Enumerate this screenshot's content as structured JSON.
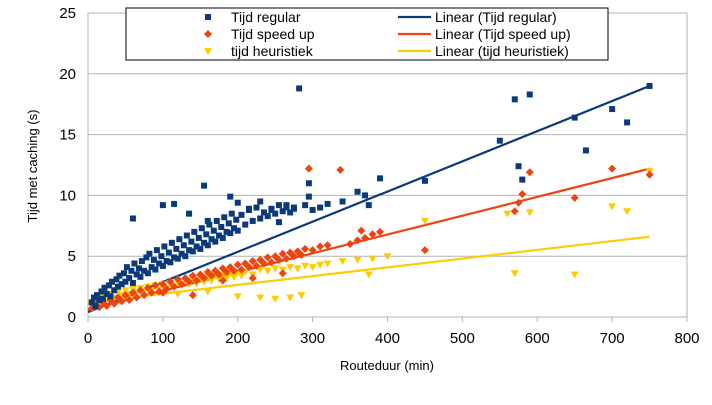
{
  "chart_data": {
    "type": "scatter",
    "title": "",
    "xlabel": "Routeduur (min)",
    "ylabel": "Tijd met caching (s)",
    "xlim": [
      0,
      800
    ],
    "ylim": [
      0,
      25
    ],
    "x_ticks": [
      0,
      100,
      200,
      300,
      400,
      500,
      600,
      700,
      800
    ],
    "y_ticks": [
      0,
      5,
      10,
      15,
      20,
      25
    ],
    "grid": "horizontal",
    "legend_position": "top",
    "series": [
      {
        "name": "Tijd regular",
        "marker": "square",
        "color": "#0b3a7a",
        "points": [
          [
            5,
            1.2
          ],
          [
            8,
            1.6
          ],
          [
            10,
            0.9
          ],
          [
            12,
            1.8
          ],
          [
            15,
            1.4
          ],
          [
            18,
            2.1
          ],
          [
            20,
            1.5
          ],
          [
            22,
            2.4
          ],
          [
            25,
            1.9
          ],
          [
            28,
            2.6
          ],
          [
            30,
            1.7
          ],
          [
            32,
            2.9
          ],
          [
            35,
            2.2
          ],
          [
            38,
            3.1
          ],
          [
            40,
            2.5
          ],
          [
            42,
            3.4
          ],
          [
            45,
            2.7
          ],
          [
            48,
            3.6
          ],
          [
            50,
            2.9
          ],
          [
            52,
            4.1
          ],
          [
            55,
            3.2
          ],
          [
            58,
            3.8
          ],
          [
            60,
            2.8
          ],
          [
            62,
            4.4
          ],
          [
            65,
            3.5
          ],
          [
            68,
            4.0
          ],
          [
            70,
            3.3
          ],
          [
            72,
            4.6
          ],
          [
            75,
            3.8
          ],
          [
            78,
            4.9
          ],
          [
            80,
            3.6
          ],
          [
            82,
            5.2
          ],
          [
            85,
            4.1
          ],
          [
            88,
            4.7
          ],
          [
            90,
            3.9
          ],
          [
            92,
            5.5
          ],
          [
            95,
            4.4
          ],
          [
            98,
            5.0
          ],
          [
            100,
            4.2
          ],
          [
            102,
            5.8
          ],
          [
            105,
            4.6
          ],
          [
            108,
            5.3
          ],
          [
            110,
            4.5
          ],
          [
            112,
            6.1
          ],
          [
            115,
            4.9
          ],
          [
            118,
            5.6
          ],
          [
            120,
            4.8
          ],
          [
            122,
            6.4
          ],
          [
            125,
            5.2
          ],
          [
            128,
            5.9
          ],
          [
            130,
            5.0
          ],
          [
            132,
            6.7
          ],
          [
            135,
            5.5
          ],
          [
            138,
            6.2
          ],
          [
            140,
            5.4
          ],
          [
            142,
            7.0
          ],
          [
            145,
            5.8
          ],
          [
            148,
            6.5
          ],
          [
            150,
            5.6
          ],
          [
            152,
            7.3
          ],
          [
            155,
            6.1
          ],
          [
            158,
            6.8
          ],
          [
            160,
            5.9
          ],
          [
            162,
            7.6
          ],
          [
            165,
            6.4
          ],
          [
            168,
            7.1
          ],
          [
            170,
            6.2
          ],
          [
            172,
            7.9
          ],
          [
            175,
            6.7
          ],
          [
            178,
            7.4
          ],
          [
            180,
            6.5
          ],
          [
            182,
            8.2
          ],
          [
            185,
            7.0
          ],
          [
            188,
            7.7
          ],
          [
            190,
            6.9
          ],
          [
            192,
            8.5
          ],
          [
            195,
            7.3
          ],
          [
            198,
            8.0
          ],
          [
            200,
            7.1
          ],
          [
            205,
            8.4
          ],
          [
            210,
            7.6
          ],
          [
            215,
            8.8
          ],
          [
            220,
            7.9
          ],
          [
            225,
            9.0
          ],
          [
            230,
            8.1
          ],
          [
            235,
            8.6
          ],
          [
            240,
            8.3
          ],
          [
            245,
            8.9
          ],
          [
            250,
            8.5
          ],
          [
            255,
            9.2
          ],
          [
            260,
            8.7
          ],
          [
            265,
            9.0
          ],
          [
            270,
            8.6
          ],
          [
            275,
            8.9
          ],
          [
            282,
            18.8
          ],
          [
            290,
            9.2
          ],
          [
            295,
            11.0
          ],
          [
            300,
            8.8
          ],
          [
            310,
            9.0
          ],
          [
            320,
            9.3
          ],
          [
            340,
            9.5
          ],
          [
            360,
            10.3
          ],
          [
            370,
            10.0
          ],
          [
            375,
            9.2
          ],
          [
            390,
            11.4
          ],
          [
            450,
            11.2
          ],
          [
            550,
            14.5
          ],
          [
            570,
            17.9
          ],
          [
            575,
            12.4
          ],
          [
            580,
            11.3
          ],
          [
            590,
            18.3
          ],
          [
            650,
            16.4
          ],
          [
            665,
            13.7
          ],
          [
            700,
            17.1
          ],
          [
            720,
            16.0
          ],
          [
            750,
            19.0
          ],
          [
            60,
            8.1
          ],
          [
            100,
            9.2
          ],
          [
            115,
            9.3
          ],
          [
            135,
            8.5
          ],
          [
            155,
            10.8
          ],
          [
            160,
            7.9
          ],
          [
            190,
            9.9
          ],
          [
            200,
            9.4
          ],
          [
            215,
            8.9
          ],
          [
            230,
            9.5
          ],
          [
            245,
            8.8
          ],
          [
            255,
            7.8
          ],
          [
            265,
            9.2
          ],
          [
            275,
            9.0
          ],
          [
            295,
            9.9
          ]
        ]
      },
      {
        "name": "Tijd speed up",
        "marker": "diamond",
        "color": "#ee4411",
        "points": [
          [
            5,
            0.7
          ],
          [
            10,
            1.0
          ],
          [
            15,
            0.8
          ],
          [
            20,
            1.2
          ],
          [
            25,
            0.9
          ],
          [
            30,
            1.4
          ],
          [
            35,
            1.1
          ],
          [
            40,
            1.6
          ],
          [
            45,
            1.3
          ],
          [
            50,
            1.8
          ],
          [
            55,
            1.4
          ],
          [
            60,
            2.0
          ],
          [
            65,
            1.6
          ],
          [
            70,
            2.2
          ],
          [
            75,
            1.8
          ],
          [
            80,
            2.4
          ],
          [
            85,
            2.0
          ],
          [
            90,
            2.6
          ],
          [
            95,
            2.1
          ],
          [
            100,
            2.7
          ],
          [
            105,
            2.3
          ],
          [
            110,
            2.9
          ],
          [
            115,
            2.5
          ],
          [
            120,
            3.1
          ],
          [
            125,
            2.7
          ],
          [
            130,
            3.2
          ],
          [
            135,
            2.9
          ],
          [
            140,
            3.4
          ],
          [
            145,
            3.0
          ],
          [
            150,
            3.5
          ],
          [
            155,
            3.2
          ],
          [
            160,
            3.7
          ],
          [
            165,
            3.4
          ],
          [
            170,
            3.8
          ],
          [
            175,
            3.5
          ],
          [
            180,
            4.0
          ],
          [
            185,
            3.7
          ],
          [
            190,
            4.1
          ],
          [
            195,
            3.8
          ],
          [
            200,
            4.3
          ],
          [
            205,
            3.9
          ],
          [
            210,
            4.4
          ],
          [
            215,
            4.1
          ],
          [
            220,
            4.6
          ],
          [
            225,
            4.2
          ],
          [
            230,
            4.7
          ],
          [
            235,
            4.4
          ],
          [
            240,
            4.9
          ],
          [
            245,
            4.5
          ],
          [
            250,
            5.0
          ],
          [
            255,
            4.7
          ],
          [
            260,
            5.2
          ],
          [
            265,
            4.8
          ],
          [
            270,
            5.3
          ],
          [
            275,
            5.0
          ],
          [
            280,
            5.4
          ],
          [
            285,
            5.1
          ],
          [
            290,
            5.6
          ],
          [
            295,
            12.2
          ],
          [
            300,
            5.5
          ],
          [
            310,
            5.8
          ],
          [
            320,
            5.9
          ],
          [
            337,
            12.1
          ],
          [
            350,
            6.0
          ],
          [
            360,
            6.3
          ],
          [
            365,
            7.1
          ],
          [
            370,
            6.5
          ],
          [
            380,
            6.8
          ],
          [
            390,
            7.0
          ],
          [
            450,
            5.5
          ],
          [
            570,
            8.7
          ],
          [
            575,
            9.4
          ],
          [
            580,
            10.1
          ],
          [
            590,
            11.9
          ],
          [
            650,
            9.8
          ],
          [
            700,
            12.2
          ],
          [
            750,
            11.7
          ],
          [
            100,
            2.0
          ],
          [
            140,
            1.8
          ],
          [
            180,
            3.0
          ],
          [
            220,
            3.2
          ],
          [
            260,
            3.6
          ]
        ]
      },
      {
        "name": "tijd heuristiek",
        "marker": "triangle-down",
        "color": "#ffcc00",
        "points": [
          [
            5,
            1.0
          ],
          [
            10,
            1.4
          ],
          [
            15,
            1.2
          ],
          [
            20,
            1.7
          ],
          [
            25,
            1.5
          ],
          [
            30,
            1.9
          ],
          [
            35,
            1.6
          ],
          [
            40,
            2.1
          ],
          [
            45,
            1.8
          ],
          [
            50,
            2.2
          ],
          [
            55,
            1.9
          ],
          [
            60,
            2.3
          ],
          [
            65,
            2.0
          ],
          [
            70,
            2.4
          ],
          [
            75,
            2.1
          ],
          [
            80,
            2.5
          ],
          [
            85,
            2.2
          ],
          [
            90,
            2.6
          ],
          [
            95,
            2.3
          ],
          [
            100,
            2.7
          ],
          [
            105,
            2.4
          ],
          [
            110,
            2.8
          ],
          [
            115,
            2.5
          ],
          [
            120,
            2.9
          ],
          [
            125,
            2.6
          ],
          [
            130,
            3.0
          ],
          [
            135,
            2.7
          ],
          [
            140,
            3.1
          ],
          [
            145,
            2.8
          ],
          [
            150,
            3.2
          ],
          [
            155,
            2.9
          ],
          [
            160,
            3.3
          ],
          [
            165,
            3.0
          ],
          [
            170,
            3.4
          ],
          [
            175,
            3.1
          ],
          [
            180,
            3.5
          ],
          [
            185,
            3.2
          ],
          [
            190,
            3.6
          ],
          [
            195,
            3.3
          ],
          [
            200,
            3.7
          ],
          [
            205,
            3.4
          ],
          [
            210,
            3.7
          ],
          [
            220,
            3.5
          ],
          [
            230,
            3.9
          ],
          [
            240,
            3.8
          ],
          [
            250,
            4.0
          ],
          [
            260,
            3.9
          ],
          [
            270,
            4.1
          ],
          [
            280,
            4.0
          ],
          [
            290,
            4.2
          ],
          [
            300,
            4.1
          ],
          [
            310,
            4.3
          ],
          [
            320,
            4.4
          ],
          [
            340,
            4.6
          ],
          [
            360,
            4.7
          ],
          [
            375,
            3.5
          ],
          [
            380,
            4.8
          ],
          [
            400,
            5.0
          ],
          [
            450,
            7.9
          ],
          [
            560,
            8.5
          ],
          [
            570,
            3.6
          ],
          [
            590,
            8.6
          ],
          [
            650,
            3.5
          ],
          [
            700,
            9.1
          ],
          [
            720,
            8.7
          ],
          [
            750,
            12.0
          ],
          [
            200,
            1.7
          ],
          [
            230,
            1.6
          ],
          [
            250,
            1.5
          ],
          [
            270,
            1.6
          ],
          [
            285,
            1.8
          ],
          [
            160,
            2.1
          ],
          [
            120,
            1.9
          ]
        ]
      }
    ],
    "trendlines": [
      {
        "name": "Linear (Tijd regular)",
        "color": "#0b3a7a",
        "x": [
          0,
          750
        ],
        "y": [
          0.4,
          19.0
        ]
      },
      {
        "name": "Linear (Tijd speed up)",
        "color": "#ee4411",
        "x": [
          0,
          750
        ],
        "y": [
          0.6,
          12.2
        ]
      },
      {
        "name": "Linear (tijd heuristiek)",
        "color": "#ffcc00",
        "x": [
          0,
          750
        ],
        "y": [
          1.2,
          6.6
        ]
      }
    ]
  }
}
